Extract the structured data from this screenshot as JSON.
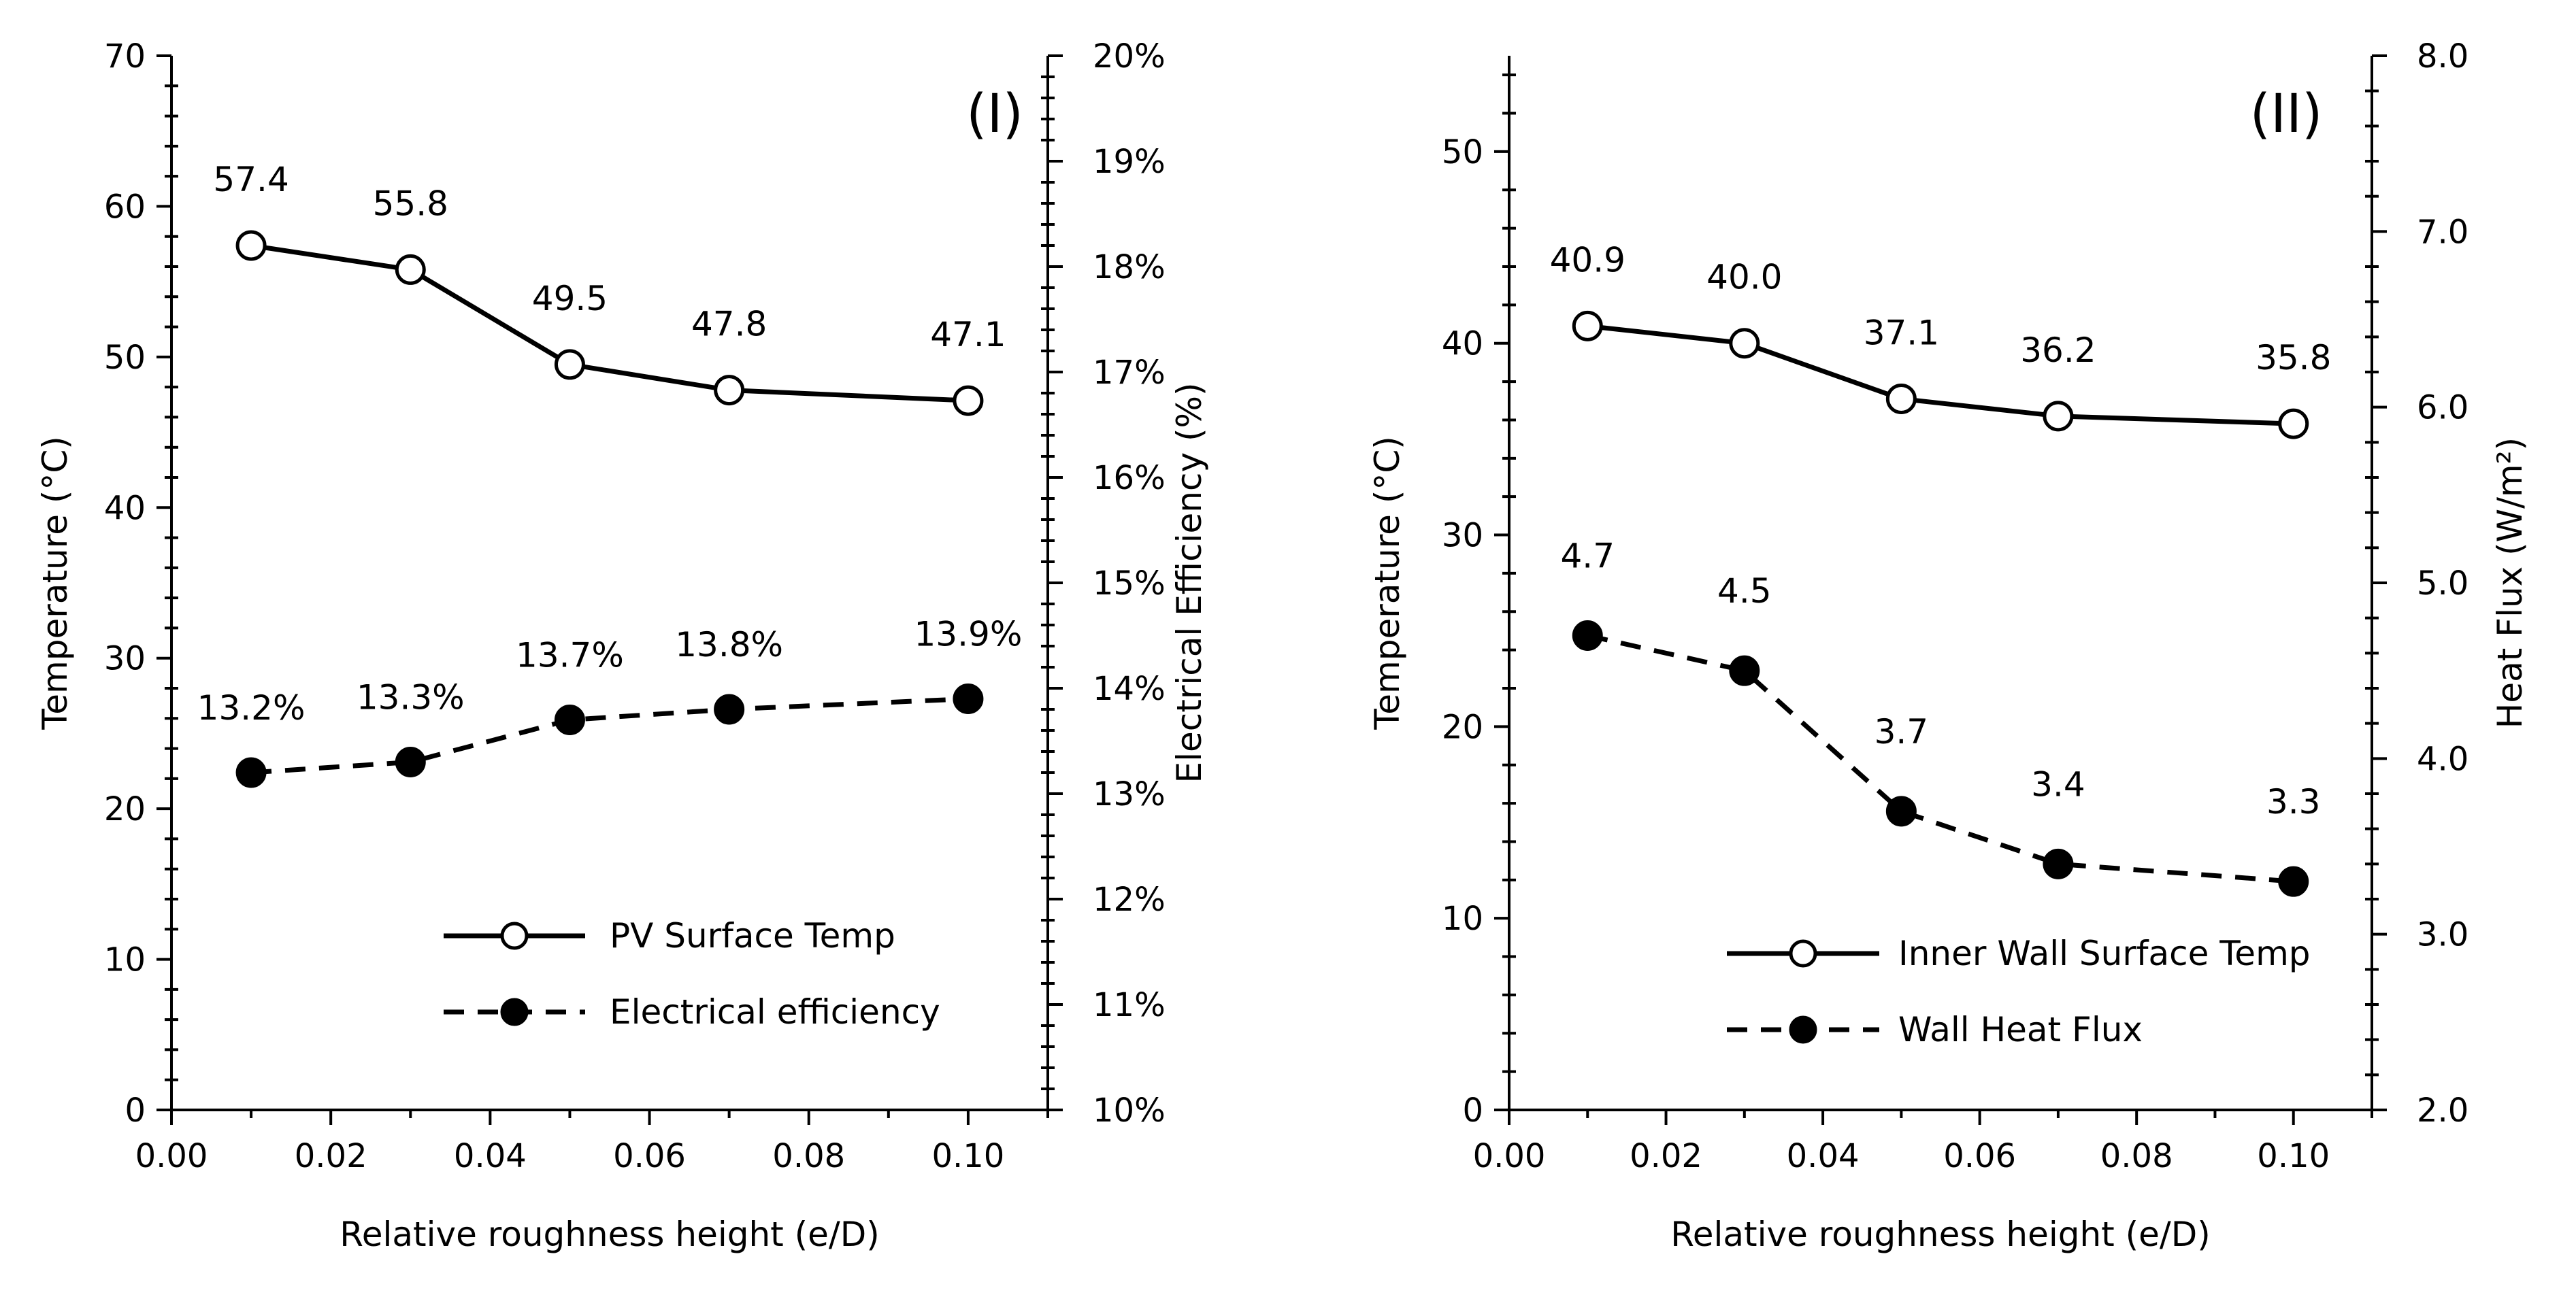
{
  "chart_data": [
    {
      "type": "line",
      "panel_label": "(I)",
      "xlabel": "Relative roughness height (e/D)",
      "ylabel": "Temperature (°C)",
      "y2label": "Electrical Efficiency (%)",
      "xlim": [
        0.0,
        0.11
      ],
      "ylim": [
        0,
        70
      ],
      "y2lim": [
        10,
        20
      ],
      "x_ticks": [
        0.0,
        0.02,
        0.04,
        0.06,
        0.08,
        0.1
      ],
      "x_tick_labels": [
        "0.00",
        "0.02",
        "0.04",
        "0.06",
        "0.08",
        "0.10"
      ],
      "y_ticks": [
        0,
        10,
        20,
        30,
        40,
        50,
        60,
        70
      ],
      "y_tick_labels": [
        "0",
        "10",
        "20",
        "30",
        "40",
        "50",
        "60",
        "70"
      ],
      "y2_ticks": [
        10,
        11,
        12,
        13,
        14,
        15,
        16,
        17,
        18,
        19,
        20
      ],
      "y2_tick_labels": [
        "10%",
        "11%",
        "12%",
        "13%",
        "14%",
        "15%",
        "16%",
        "17%",
        "18%",
        "19%",
        "20%"
      ],
      "legend_position": "bottom-right",
      "series": [
        {
          "name": "PV Surface Temp",
          "axis": "left",
          "line": "solid",
          "marker": "open",
          "x": [
            0.01,
            0.03,
            0.05,
            0.07,
            0.1
          ],
          "values": [
            57.4,
            55.8,
            49.5,
            47.8,
            47.1
          ],
          "labels": [
            "57.4",
            "55.8",
            "49.5",
            "47.8",
            "47.1"
          ]
        },
        {
          "name": "Electrical efficiency",
          "axis": "right",
          "line": "dashed",
          "marker": "filled",
          "x": [
            0.01,
            0.03,
            0.05,
            0.07,
            0.1
          ],
          "values": [
            13.2,
            13.3,
            13.7,
            13.8,
            13.9
          ],
          "labels": [
            "13.2%",
            "13.3%",
            "13.7%",
            "13.8%",
            "13.9%"
          ]
        }
      ]
    },
    {
      "type": "line",
      "panel_label": "(II)",
      "xlabel": "Relative roughness height (e/D)",
      "ylabel": "Temperature (°C)",
      "y2label": "Heat Flux (W/m²)",
      "xlim": [
        0.0,
        0.11
      ],
      "ylim": [
        0,
        55
      ],
      "y2lim": [
        2.0,
        8.0
      ],
      "x_ticks": [
        0.0,
        0.02,
        0.04,
        0.06,
        0.08,
        0.1
      ],
      "x_tick_labels": [
        "0.00",
        "0.02",
        "0.04",
        "0.06",
        "0.08",
        "0.10"
      ],
      "y_ticks": [
        0,
        10,
        20,
        30,
        40,
        50
      ],
      "y_tick_labels": [
        "0",
        "10",
        "20",
        "30",
        "40",
        "50"
      ],
      "y2_ticks": [
        2,
        3,
        4,
        5,
        6,
        7,
        8
      ],
      "y2_tick_labels": [
        "2.0",
        "3.0",
        "4.0",
        "5.0",
        "6.0",
        "7.0",
        "8.0"
      ],
      "legend_position": "bottom-right",
      "series": [
        {
          "name": "Inner Wall Surface Temp",
          "axis": "left",
          "line": "solid",
          "marker": "open",
          "x": [
            0.01,
            0.03,
            0.05,
            0.07,
            0.1
          ],
          "values": [
            40.9,
            40.0,
            37.1,
            36.2,
            35.8
          ],
          "labels": [
            "40.9",
            "40.0",
            "37.1",
            "36.2",
            "35.8"
          ]
        },
        {
          "name": "Wall Heat Flux",
          "axis": "right",
          "line": "dashed",
          "marker": "filled",
          "x": [
            0.01,
            0.03,
            0.05,
            0.07,
            0.1
          ],
          "values": [
            4.7,
            4.5,
            3.7,
            3.4,
            3.3
          ],
          "labels": [
            "4.7",
            "4.5",
            "3.7",
            "3.4",
            "3.3"
          ]
        }
      ]
    }
  ]
}
